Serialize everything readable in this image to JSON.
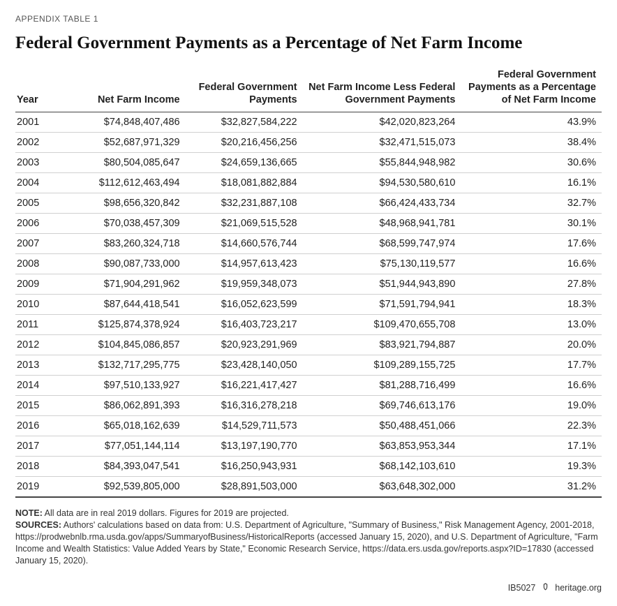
{
  "eyebrow": "APPENDIX TABLE 1",
  "title": "Federal Government Payments as a Percentage of Net Farm Income",
  "table": {
    "columns": [
      "Year",
      "Net Farm Income",
      "Federal Government Payments",
      "Net Farm Income Less Federal Government Payments",
      "Federal Government Payments as a Percentage of Net Farm Income"
    ],
    "rows": [
      [
        "2001",
        "$74,848,407,486",
        "$32,827,584,222",
        "$42,020,823,264",
        "43.9%"
      ],
      [
        "2002",
        "$52,687,971,329",
        "$20,216,456,256",
        "$32,471,515,073",
        "38.4%"
      ],
      [
        "2003",
        "$80,504,085,647",
        "$24,659,136,665",
        "$55,844,948,982",
        "30.6%"
      ],
      [
        "2004",
        "$112,612,463,494",
        "$18,081,882,884",
        "$94,530,580,610",
        "16.1%"
      ],
      [
        "2005",
        "$98,656,320,842",
        "$32,231,887,108",
        "$66,424,433,734",
        "32.7%"
      ],
      [
        "2006",
        "$70,038,457,309",
        "$21,069,515,528",
        "$48,968,941,781",
        "30.1%"
      ],
      [
        "2007",
        "$83,260,324,718",
        "$14,660,576,744",
        "$68,599,747,974",
        "17.6%"
      ],
      [
        "2008",
        "$90,087,733,000",
        "$14,957,613,423",
        "$75,130,119,577",
        "16.6%"
      ],
      [
        "2009",
        "$71,904,291,962",
        "$19,959,348,073",
        "$51,944,943,890",
        "27.8%"
      ],
      [
        "2010",
        "$87,644,418,541",
        "$16,052,623,599",
        "$71,591,794,941",
        "18.3%"
      ],
      [
        "2011",
        "$125,874,378,924",
        "$16,403,723,217",
        "$109,470,655,708",
        "13.0%"
      ],
      [
        "2012",
        "$104,845,086,857",
        "$20,923,291,969",
        "$83,921,794,887",
        "20.0%"
      ],
      [
        "2013",
        "$132,717,295,775",
        "$23,428,140,050",
        "$109,289,155,725",
        "17.7%"
      ],
      [
        "2014",
        "$97,510,133,927",
        "$16,221,417,427",
        "$81,288,716,499",
        "16.6%"
      ],
      [
        "2015",
        "$86,062,891,393",
        "$16,316,278,218",
        "$69,746,613,176",
        "19.0%"
      ],
      [
        "2016",
        "$65,018,162,639",
        "$14,529,711,573",
        "$50,488,451,066",
        "22.3%"
      ],
      [
        "2017",
        "$77,051,144,114",
        "$13,197,190,770",
        "$63,853,953,344",
        "17.1%"
      ],
      [
        "2018",
        "$84,393,047,541",
        "$16,250,943,931",
        "$68,142,103,610",
        "19.3%"
      ],
      [
        "2019",
        "$92,539,805,000",
        "$28,891,503,000",
        "$63,648,302,000",
        "31.2%"
      ]
    ],
    "col_align": [
      "left",
      "right",
      "right",
      "right",
      "right"
    ],
    "header_fontsize": 14.5,
    "body_fontsize": 14.5,
    "border_color": "#444444",
    "row_border_color": "#d0d0d0",
    "background_color": "#ffffff"
  },
  "note_label": "NOTE:",
  "note_text": " All data are in real 2019 dollars. Figures for 2019 are projected.",
  "sources_label": "SOURCES:",
  "sources_text": " Authors' calculations based on data from: U.S. Department of Agriculture, \"Summary of Business,\" Risk Management Agency, 2001-2018, https://prodwebnlb.rma.usda.gov/apps/SummaryofBusiness/HistoricalReports (accessed January 15, 2020), and U.S. Department of Agriculture, \"Farm Income and Wealth Statistics: Value Added Years by State,\" Economic Research Service, https://data.ers.usda.gov/reports.aspx?ID=17830 (accessed January 15, 2020).",
  "footer": {
    "id": "IB5027",
    "site": "heritage.org"
  },
  "colors": {
    "text": "#1a1a1a",
    "title": "#111111",
    "eyebrow": "#555555",
    "notes": "#333333"
  }
}
